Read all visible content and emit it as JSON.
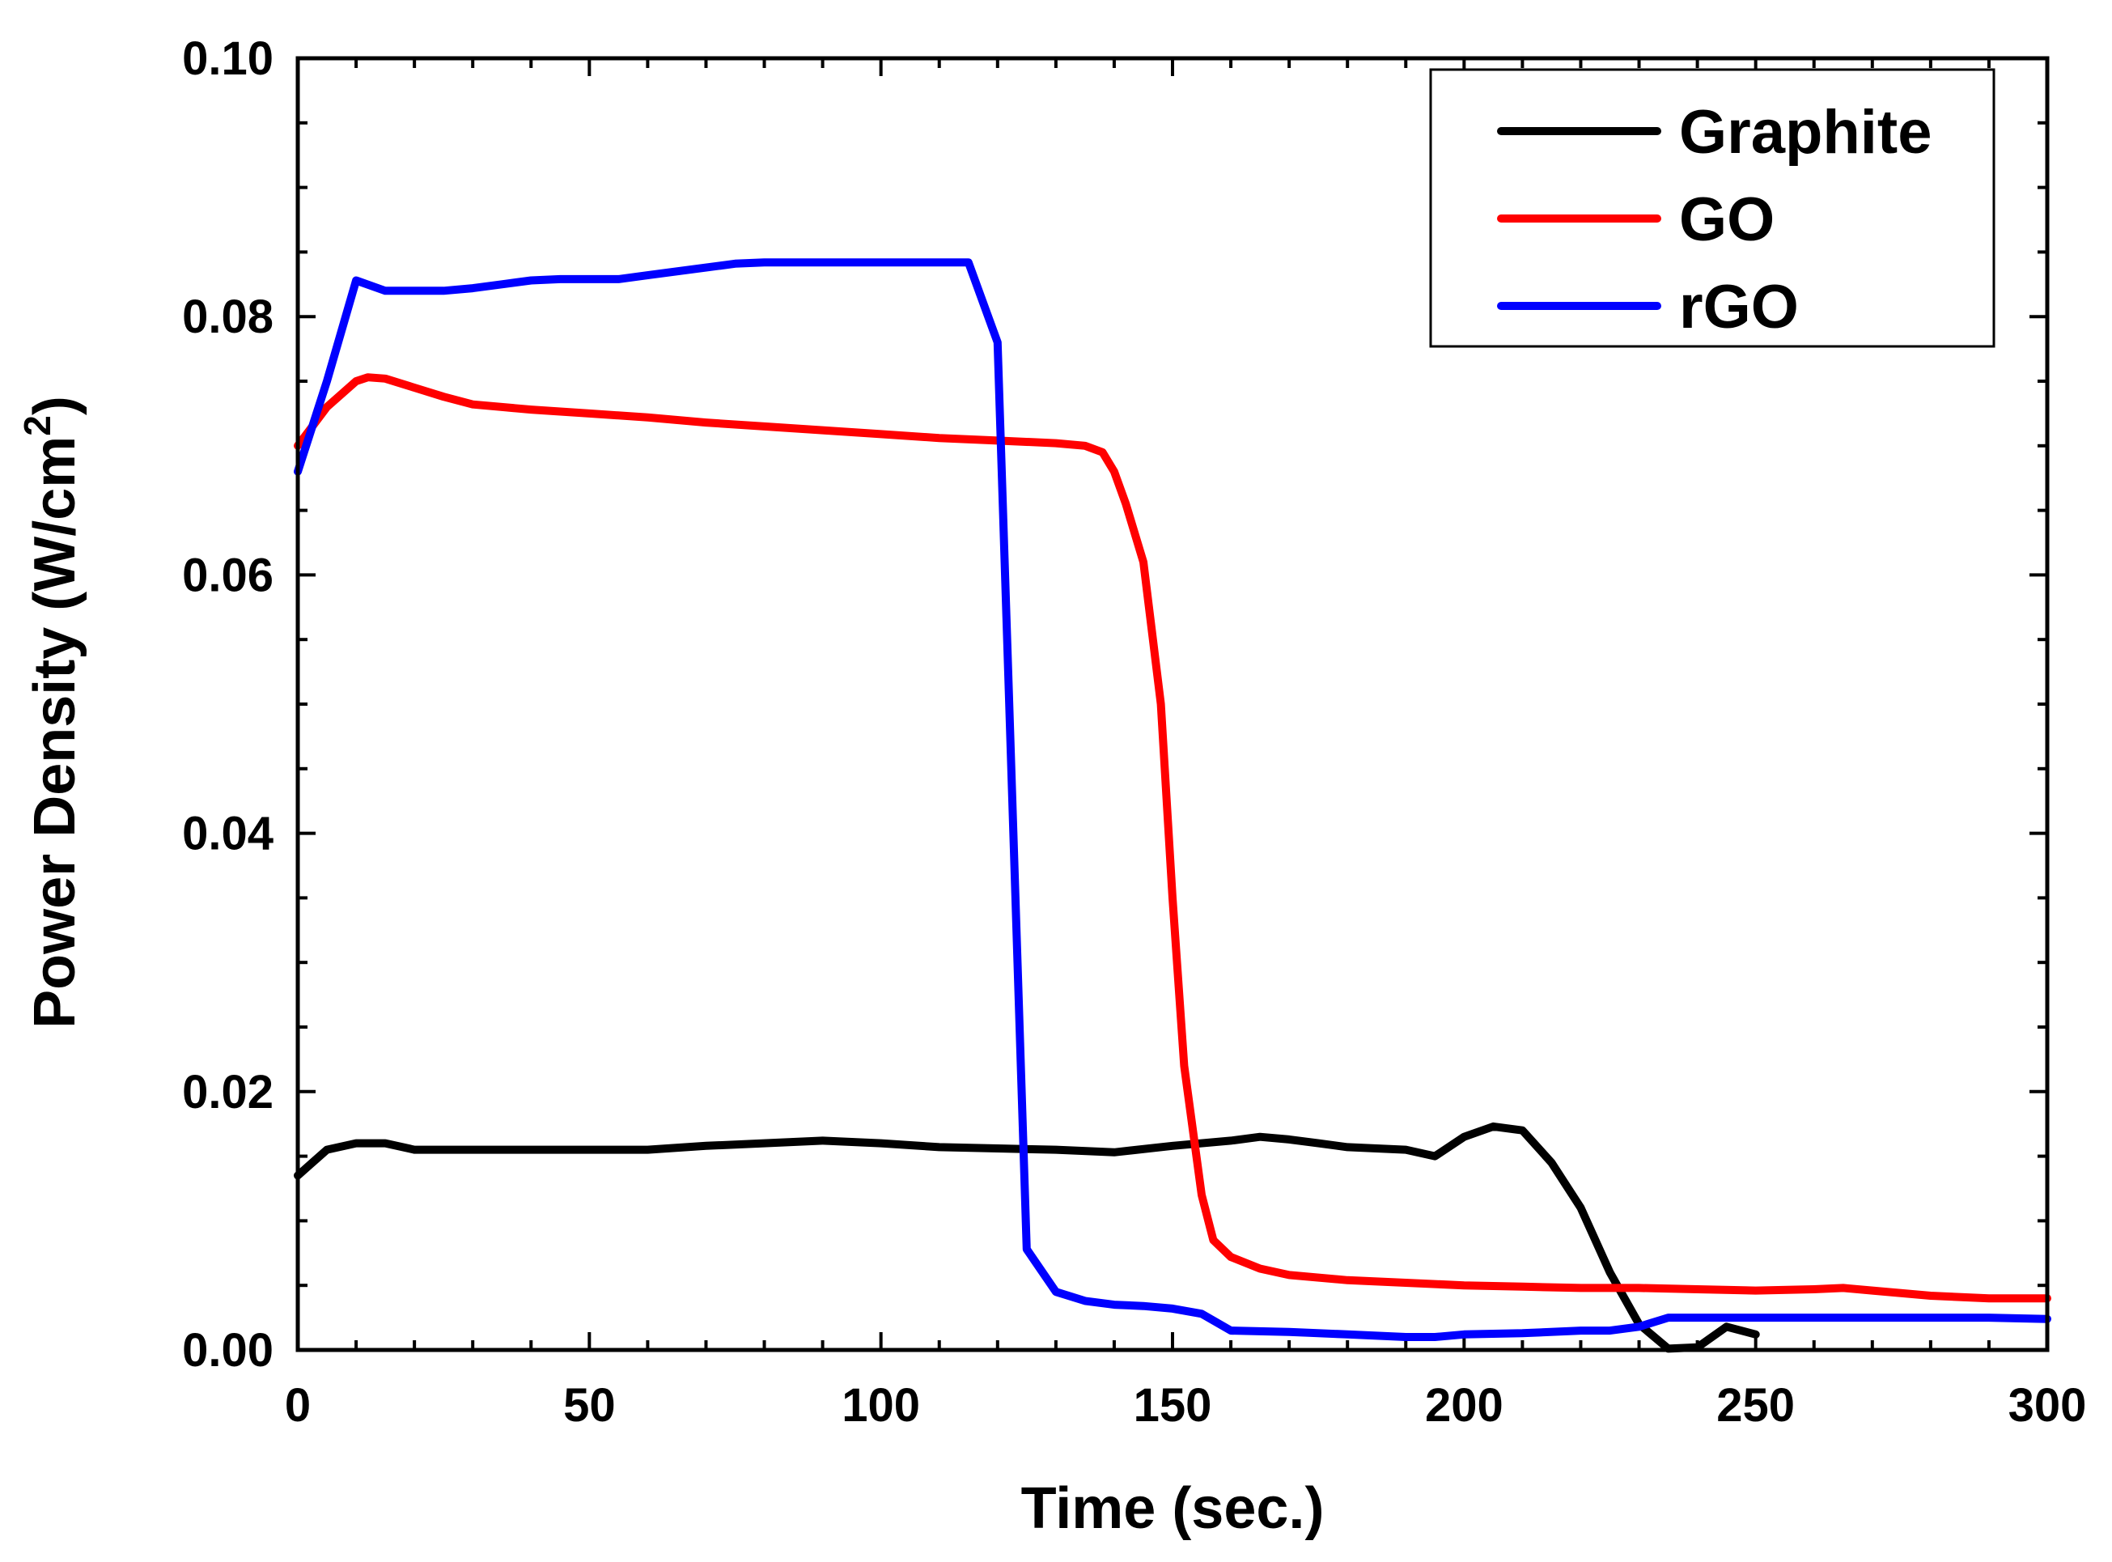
{
  "chart_data": {
    "type": "line",
    "title": "",
    "xlabel": "Time (sec.)",
    "ylabel_main": "Power Density (W/cm",
    "ylabel_sup": "2",
    "ylabel_close": ")",
    "xlim": [
      0,
      300
    ],
    "ylim": [
      0,
      0.1
    ],
    "xticks": [
      0,
      50,
      100,
      150,
      200,
      250,
      300
    ],
    "yticks": [
      0,
      0.02,
      0.04,
      0.06,
      0.08,
      0.1
    ],
    "xtick_labels": [
      "0",
      "50",
      "100",
      "150",
      "200",
      "250",
      "300"
    ],
    "ytick_labels": [
      "0.00",
      "0.02",
      "0.04",
      "0.06",
      "0.08",
      "0.10"
    ],
    "grid": false,
    "legend_position": "top-right",
    "series": [
      {
        "name": "Graphite",
        "color": "#000000",
        "x": [
          0,
          5,
          10,
          15,
          20,
          30,
          40,
          50,
          60,
          70,
          80,
          90,
          100,
          110,
          120,
          130,
          140,
          150,
          160,
          165,
          170,
          175,
          180,
          185,
          190,
          195,
          200,
          205,
          210,
          215,
          220,
          225,
          230,
          235,
          240,
          245,
          250
        ],
        "y": [
          0.0135,
          0.0155,
          0.016,
          0.016,
          0.0155,
          0.0155,
          0.0155,
          0.0155,
          0.0155,
          0.0158,
          0.016,
          0.0162,
          0.016,
          0.0157,
          0.0156,
          0.0155,
          0.0153,
          0.0158,
          0.0162,
          0.0165,
          0.0163,
          0.016,
          0.0157,
          0.0156,
          0.0155,
          0.015,
          0.0165,
          0.0173,
          0.017,
          0.0145,
          0.011,
          0.006,
          0.002,
          0.0001,
          0.0002,
          0.0018,
          0.0012
        ]
      },
      {
        "name": "GO",
        "color": "#ff0000",
        "x": [
          0,
          5,
          10,
          12,
          15,
          20,
          25,
          30,
          40,
          50,
          60,
          70,
          80,
          90,
          100,
          110,
          120,
          130,
          135,
          138,
          140,
          142,
          145,
          148,
          150,
          152,
          155,
          157,
          160,
          165,
          170,
          180,
          190,
          200,
          210,
          220,
          230,
          240,
          250,
          260,
          265,
          270,
          280,
          290,
          300
        ],
        "y": [
          0.07,
          0.073,
          0.075,
          0.0753,
          0.0752,
          0.0745,
          0.0738,
          0.0732,
          0.0728,
          0.0725,
          0.0722,
          0.0718,
          0.0715,
          0.0712,
          0.0709,
          0.0706,
          0.0704,
          0.0702,
          0.07,
          0.0695,
          0.068,
          0.0655,
          0.061,
          0.05,
          0.035,
          0.022,
          0.012,
          0.0085,
          0.0072,
          0.0063,
          0.0058,
          0.0054,
          0.0052,
          0.005,
          0.0049,
          0.0048,
          0.0048,
          0.0047,
          0.0046,
          0.0047,
          0.0048,
          0.0046,
          0.0042,
          0.004,
          0.004
        ]
      },
      {
        "name": "rGO",
        "color": "#0000ff",
        "x": [
          0,
          5,
          10,
          15,
          20,
          25,
          30,
          35,
          40,
          45,
          50,
          55,
          60,
          65,
          70,
          75,
          80,
          85,
          90,
          95,
          100,
          105,
          110,
          115,
          120,
          122,
          125,
          130,
          135,
          140,
          145,
          150,
          155,
          160,
          170,
          180,
          190,
          195,
          200,
          210,
          220,
          225,
          230,
          235,
          240,
          250,
          260,
          270,
          280,
          290,
          300
        ],
        "y": [
          0.068,
          0.075,
          0.0828,
          0.082,
          0.082,
          0.082,
          0.0822,
          0.0825,
          0.0828,
          0.0829,
          0.0829,
          0.0829,
          0.0832,
          0.0835,
          0.0838,
          0.0841,
          0.0842,
          0.0842,
          0.0842,
          0.0842,
          0.0842,
          0.0842,
          0.0842,
          0.0842,
          0.078,
          0.05,
          0.0078,
          0.0045,
          0.0038,
          0.0035,
          0.0034,
          0.0032,
          0.0028,
          0.0015,
          0.0014,
          0.0012,
          0.001,
          0.001,
          0.0012,
          0.0013,
          0.0015,
          0.0015,
          0.0018,
          0.0025,
          0.0025,
          0.0025,
          0.0025,
          0.0025,
          0.0025,
          0.0025,
          0.0024
        ]
      }
    ]
  }
}
